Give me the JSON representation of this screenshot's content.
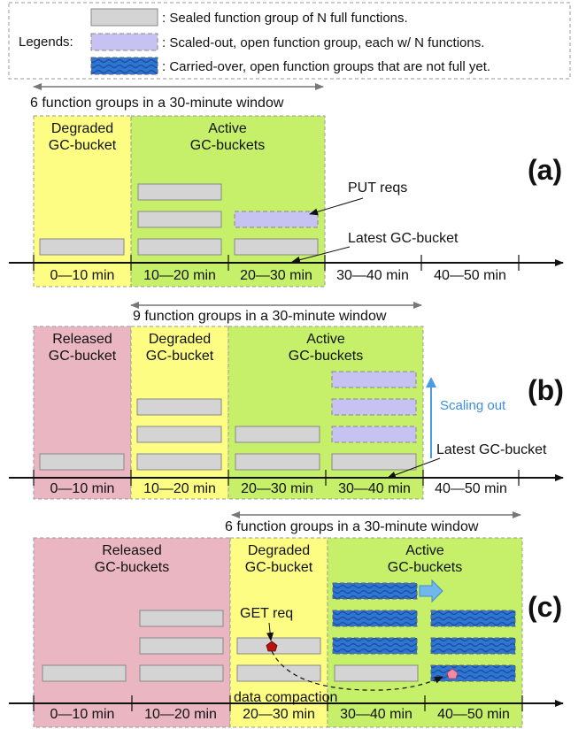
{
  "legend": {
    "title": "Legends:",
    "items": [
      {
        "kind": "sealed",
        "text": ": Sealed function group of N full functions."
      },
      {
        "kind": "scaled",
        "text": ": Scaled-out, open function group, each w/ N functions."
      },
      {
        "kind": "carried",
        "text": ": Carried-over, open function groups that are not full yet."
      }
    ]
  },
  "panel_a": {
    "label": "(a)",
    "window_text": "6 function groups in a 30-minute window",
    "degraded_label": [
      "Degraded",
      "GC-bucket"
    ],
    "active_label": [
      "Active",
      "GC-buckets"
    ],
    "put_label": "PUT reqs",
    "latest_label": "Latest GC-bucket",
    "time_labels": [
      "0—10 min",
      "10—20 min",
      "20—30 min",
      "30—40 min",
      "40—50 min"
    ]
  },
  "panel_b": {
    "label": "(b)",
    "window_text": "9 function groups in a 30-minute window",
    "released_label": [
      "Released",
      "GC-bucket"
    ],
    "degraded_label": [
      "Degraded",
      "GC-bucket"
    ],
    "active_label": [
      "Active",
      "GC-buckets"
    ],
    "scaling_label": "Scaling out",
    "latest_label": "Latest GC-bucket",
    "time_labels": [
      "0—10 min",
      "10—20 min",
      "20—30 min",
      "30—40 min",
      "40—50 min"
    ]
  },
  "panel_c": {
    "label": "(c)",
    "window_text": "6 function groups in a 30-minute window",
    "released_label": [
      "Released",
      "GC-buckets"
    ],
    "degraded_label": [
      "Degraded",
      "GC-bucket"
    ],
    "active_label": [
      "Active",
      "GC-buckets"
    ],
    "get_label": "GET req",
    "compaction_label": "data compaction",
    "time_labels": [
      "0—10 min",
      "10—20 min",
      "20—30 min",
      "30—40 min",
      "40—50 min"
    ]
  },
  "colors": {
    "degraded": "#fdfd84",
    "active": "#c6ef6a",
    "released": "#eab6c1",
    "sealed": "#d4d4d4",
    "scaled": "#c6c3f3",
    "carried": "#2f76d3",
    "scaling_arrow": "#4a9be4"
  }
}
